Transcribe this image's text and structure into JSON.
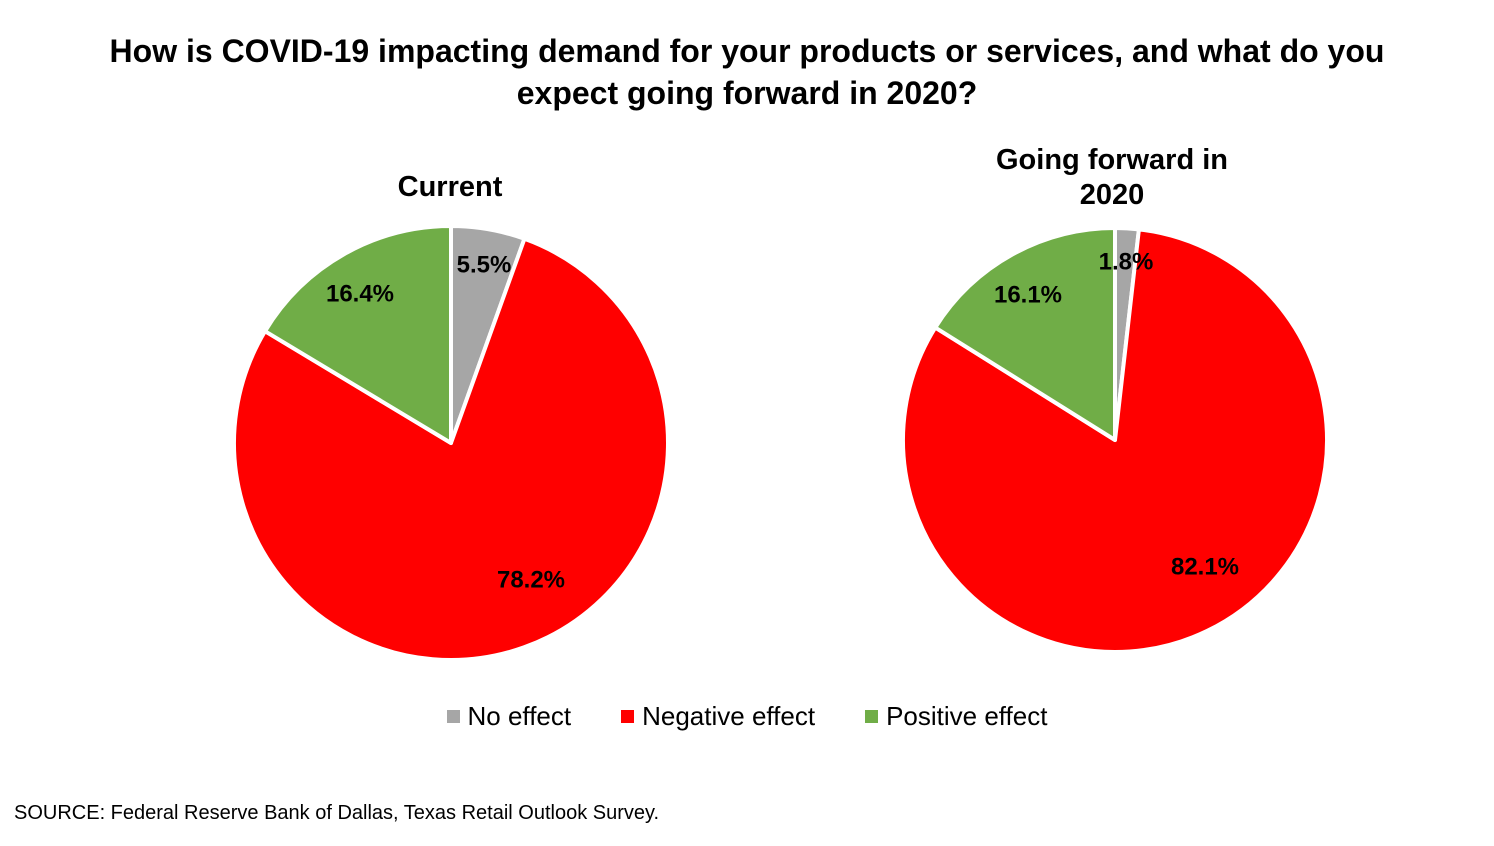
{
  "title_line1": "How is COVID-19 impacting demand for your products or services, and what do you",
  "title_line2": "expect going forward in 2020?",
  "source": "SOURCE: Federal Reserve Bank of Dallas, Texas Retail Outlook Survey.",
  "colors": {
    "no_effect": "#A6A6A6",
    "negative_effect": "#FF0000",
    "positive_effect": "#70AD47"
  },
  "chart_data": [
    {
      "type": "pie",
      "title": "Current",
      "title_lines": [
        "Current"
      ],
      "categories": [
        "No effect",
        "Negative effect",
        "Positive effect"
      ],
      "values": [
        5.5,
        78.2,
        16.4
      ],
      "data_labels": [
        "5.5%",
        "78.2%",
        "16.4%"
      ],
      "legend_position": "bottom"
    },
    {
      "type": "pie",
      "title": "Going forward in 2020",
      "title_lines": [
        "Going forward in",
        "2020"
      ],
      "categories": [
        "No effect",
        "Negative effect",
        "Positive effect"
      ],
      "values": [
        1.8,
        82.1,
        16.1
      ],
      "data_labels": [
        "1.8%",
        "82.1%",
        "16.1%"
      ],
      "legend_position": "bottom"
    }
  ],
  "legend": [
    {
      "label": "No effect",
      "color": "#A6A6A6"
    },
    {
      "label": "Negative effect",
      "color": "#FF0000"
    },
    {
      "label": "Positive effect",
      "color": "#70AD47"
    }
  ]
}
